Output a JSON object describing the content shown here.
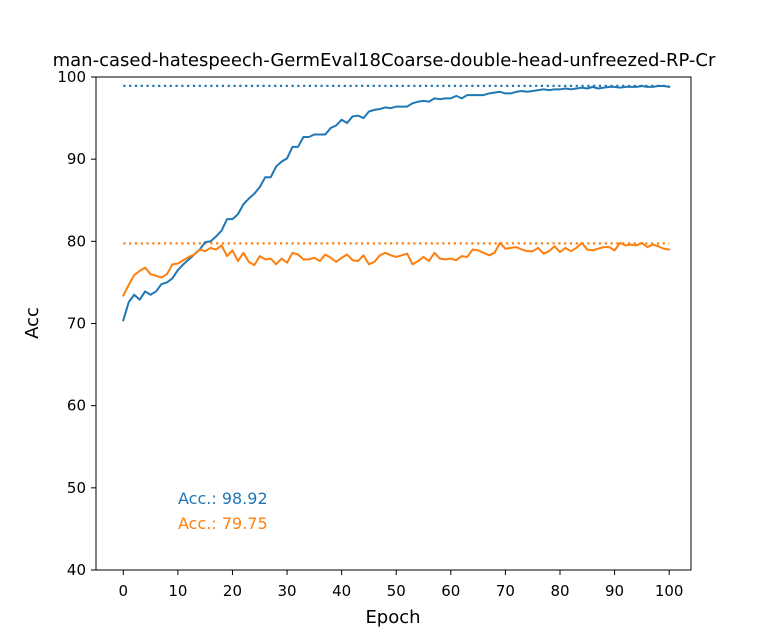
{
  "chart_data": {
    "type": "line",
    "title": "man-cased-hatespeech-GermEval18Coarse-double-head-unfreezed-RP-Cr",
    "xlabel": "Epoch",
    "ylabel": "Acc",
    "xlim": [
      -5,
      104
    ],
    "ylim": [
      40,
      100
    ],
    "xticks": [
      0,
      10,
      20,
      30,
      40,
      50,
      60,
      70,
      80,
      90,
      100
    ],
    "yticks": [
      40,
      50,
      60,
      70,
      80,
      90,
      100
    ],
    "grid": false,
    "colors": {
      "series1": "#1f77b4",
      "series2": "#ff7f0e",
      "axes": "#000000"
    },
    "series": [
      {
        "color": "#1f77b4",
        "x_start": 0,
        "x_step": 1,
        "values": [
          70.4,
          72.6,
          73.5,
          72.9,
          73.9,
          73.5,
          73.9,
          74.8,
          75.0,
          75.5,
          76.5,
          77.2,
          77.8,
          78.4,
          79.0,
          79.9,
          80.0,
          80.6,
          81.3,
          82.7,
          82.7,
          83.3,
          84.5,
          85.2,
          85.8,
          86.6,
          87.8,
          87.8,
          89.1,
          89.7,
          90.1,
          91.5,
          91.5,
          92.7,
          92.7,
          93.0,
          93.0,
          93.0,
          93.8,
          94.1,
          94.8,
          94.4,
          95.2,
          95.3,
          95.0,
          95.8,
          96.0,
          96.1,
          96.3,
          96.2,
          96.4,
          96.4,
          96.4,
          96.8,
          97.0,
          97.1,
          97.0,
          97.4,
          97.3,
          97.4,
          97.4,
          97.7,
          97.4,
          97.8,
          97.8,
          97.8,
          97.8,
          98.0,
          98.1,
          98.2,
          98.0,
          98.0,
          98.2,
          98.3,
          98.2,
          98.3,
          98.4,
          98.5,
          98.4,
          98.5,
          98.5,
          98.6,
          98.5,
          98.6,
          98.7,
          98.6,
          98.8,
          98.6,
          98.7,
          98.8,
          98.8,
          98.7,
          98.8,
          98.8,
          98.8,
          98.9,
          98.8,
          98.8,
          98.9,
          98.9,
          98.8
        ],
        "best_line": 98.92,
        "annotation": "Acc.: 98.92"
      },
      {
        "color": "#ff7f0e",
        "x_start": 0,
        "x_step": 1,
        "values": [
          73.4,
          74.7,
          75.9,
          76.4,
          76.8,
          76.0,
          75.8,
          75.6,
          76.0,
          77.2,
          77.3,
          77.7,
          78.1,
          78.4,
          79.0,
          78.8,
          79.2,
          79.0,
          79.5,
          78.2,
          78.9,
          77.6,
          78.6,
          77.5,
          77.1,
          78.2,
          77.8,
          77.9,
          77.2,
          77.9,
          77.4,
          78.6,
          78.4,
          77.8,
          77.8,
          78.0,
          77.6,
          78.4,
          78.0,
          77.5,
          78.0,
          78.4,
          77.7,
          77.6,
          78.3,
          77.2,
          77.5,
          78.3,
          78.6,
          78.3,
          78.1,
          78.3,
          78.5,
          77.2,
          77.6,
          78.1,
          77.6,
          78.6,
          77.9,
          77.8,
          77.9,
          77.7,
          78.2,
          78.1,
          79.0,
          78.9,
          78.6,
          78.3,
          78.6,
          79.8,
          79.1,
          79.2,
          79.3,
          79.0,
          78.8,
          78.8,
          79.2,
          78.5,
          78.8,
          79.4,
          78.7,
          79.2,
          78.8,
          79.2,
          79.8,
          79.0,
          78.9,
          79.1,
          79.3,
          79.3,
          78.9,
          79.8,
          79.5,
          79.6,
          79.5,
          79.8,
          79.3,
          79.6,
          79.4,
          79.1,
          79.0
        ],
        "best_line": 79.75,
        "annotation": "Acc.: 79.75"
      }
    ]
  }
}
